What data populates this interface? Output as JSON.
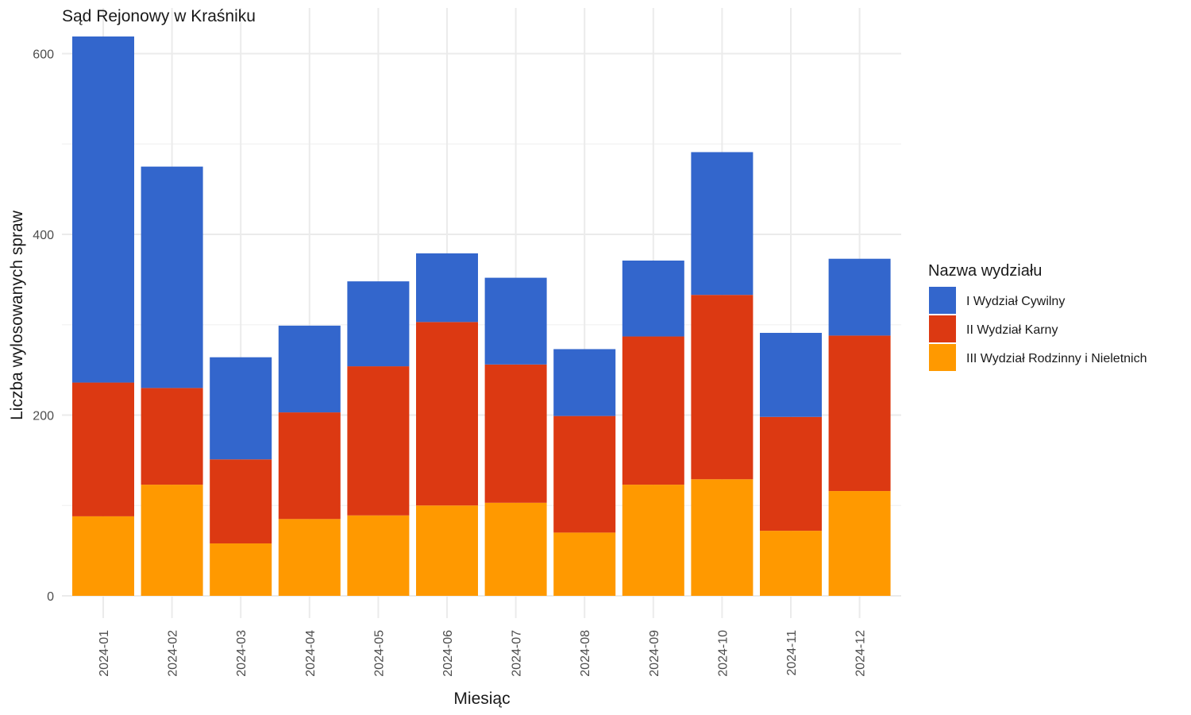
{
  "chart_data": {
    "type": "bar",
    "stacked": true,
    "title": "Sąd Rejonowy w Kraśniku",
    "xlabel": "Miesiąc",
    "ylabel": "Liczba wylosowanych spraw",
    "ylim": [
      0,
      620
    ],
    "yticks": [
      0,
      200,
      400,
      600
    ],
    "grid": true,
    "legend": {
      "title": "Nazwa wydziału",
      "position": "right"
    },
    "categories": [
      "2024-01",
      "2024-02",
      "2024-03",
      "2024-04",
      "2024-05",
      "2024-06",
      "2024-07",
      "2024-08",
      "2024-09",
      "2024-10",
      "2024-11",
      "2024-12"
    ],
    "series": [
      {
        "name": "I Wydział Cywilny",
        "color": "#3366cc",
        "values": [
          383,
          245,
          113,
          96,
          94,
          76,
          96,
          74,
          84,
          158,
          93,
          85
        ]
      },
      {
        "name": "II Wydział Karny",
        "color": "#dc3912",
        "values": [
          148,
          107,
          93,
          118,
          165,
          203,
          153,
          129,
          164,
          204,
          126,
          172
        ]
      },
      {
        "name": "III Wydział Rodzinny i Nieletnich",
        "color": "#ff9900",
        "values": [
          88,
          123,
          58,
          85,
          89,
          100,
          103,
          70,
          123,
          129,
          72,
          116
        ]
      }
    ]
  }
}
